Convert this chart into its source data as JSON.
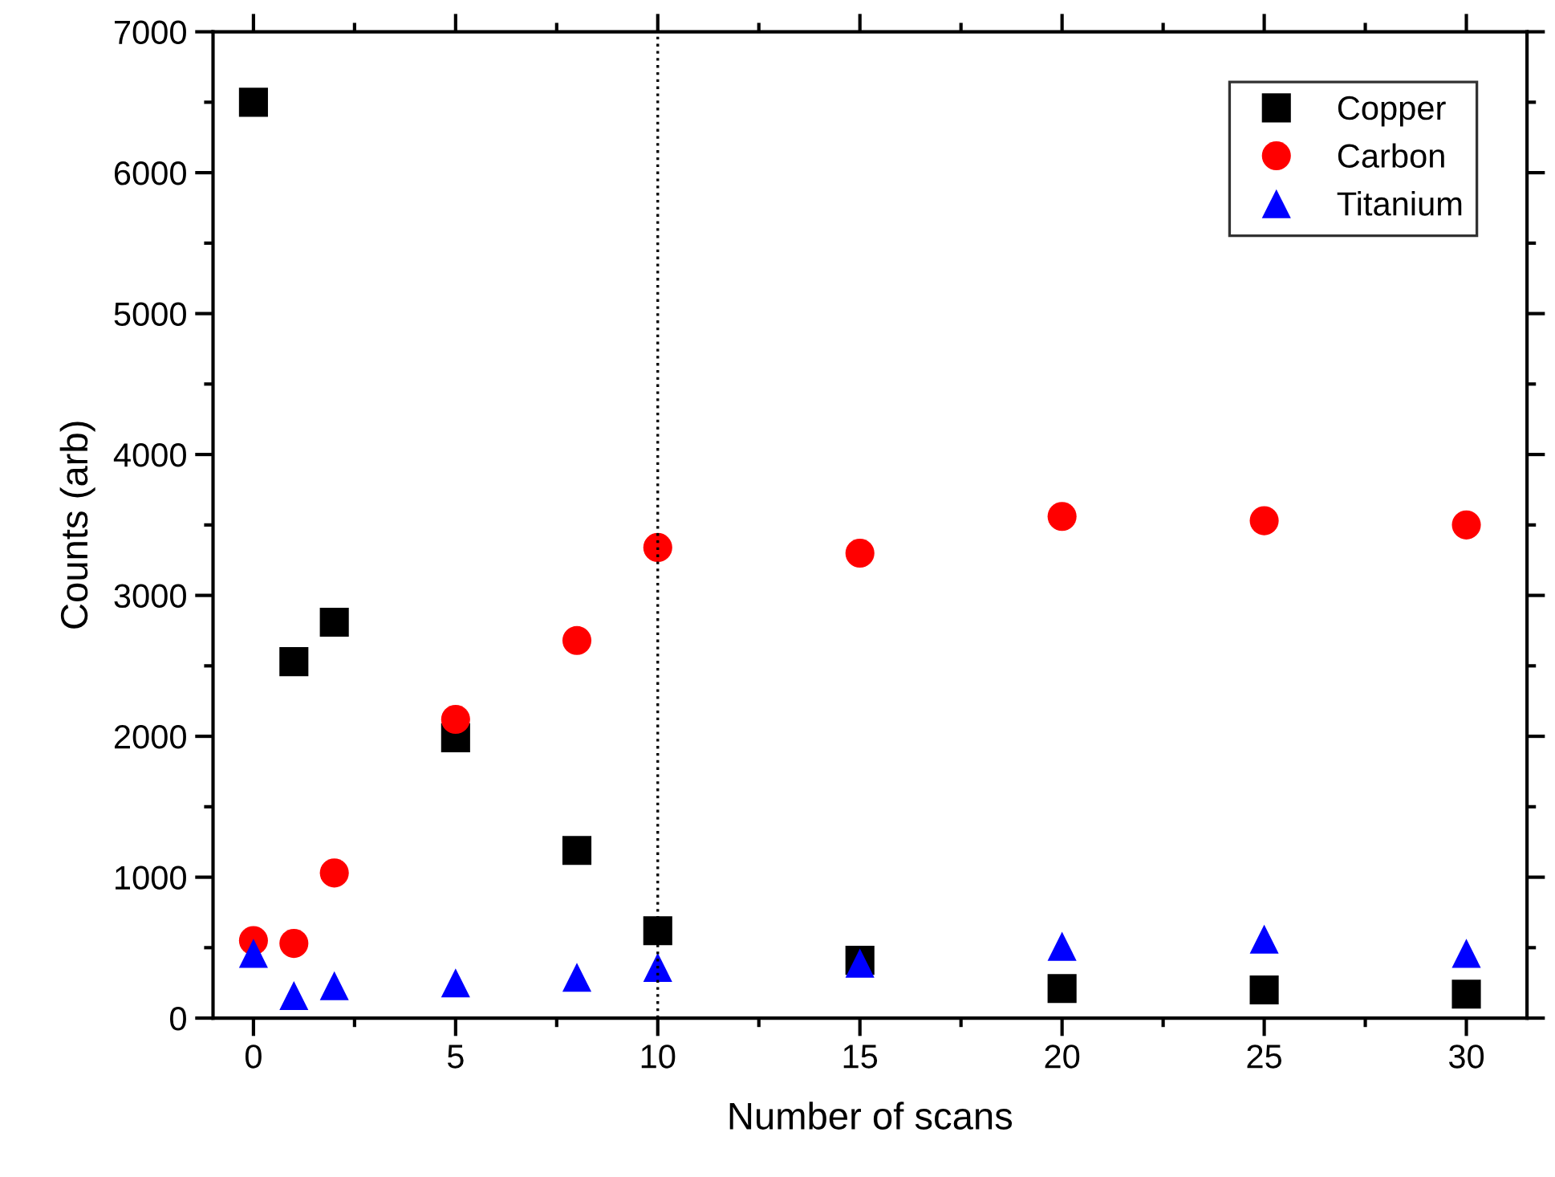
{
  "chart_data": {
    "type": "scatter",
    "xlabel": "Number of scans",
    "ylabel": "Counts (arb)",
    "x": [
      0,
      1,
      2,
      5,
      8,
      10,
      15,
      20,
      25,
      30
    ],
    "xlim": [
      -1,
      31.5
    ],
    "xticks": [
      0,
      5,
      10,
      15,
      20,
      25,
      30
    ],
    "ylim": [
      0,
      7000
    ],
    "yticks": [
      0,
      1000,
      2000,
      3000,
      4000,
      5000,
      6000,
      7000
    ],
    "grid": false,
    "legend": "top right",
    "ref_lines": [
      {
        "axis": "x",
        "value": 10,
        "line_style": "dotted",
        "color": "#000000"
      }
    ],
    "series": [
      {
        "name": "Copper",
        "color": "#000000",
        "marker": "square",
        "values": [
          6500,
          2530,
          2810,
          1990,
          1190,
          620,
          410,
          210,
          200,
          170
        ]
      },
      {
        "name": "Carbon",
        "color": "#ff0000",
        "marker": "circle",
        "values": [
          550,
          530,
          1030,
          2120,
          2680,
          3340,
          3300,
          3560,
          3530,
          3500
        ]
      },
      {
        "name": "Titanium",
        "color": "#0000ff",
        "marker": "triangle",
        "values": [
          460,
          160,
          230,
          250,
          290,
          360,
          390,
          510,
          560,
          460
        ]
      }
    ]
  }
}
